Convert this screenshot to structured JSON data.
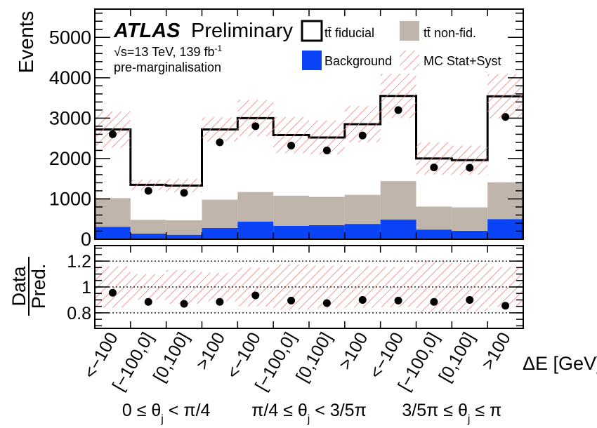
{
  "chart_data": [
    {
      "type": "bar",
      "panel": "main",
      "ylabel": "Events",
      "ylim": [
        0,
        5700
      ],
      "yticks": [
        0,
        1000,
        2000,
        3000,
        4000,
        5000
      ],
      "categories": [
        "<−100",
        "[−100,0]",
        "[0,100]",
        ">100",
        "<−100",
        "[−100,0]",
        "[0,100]",
        ">100",
        "<−100",
        "[−100,0]",
        "[0,100]",
        ">100"
      ],
      "groups": [
        "0 ≤ θj < π/4",
        "π/4 ≤ θj < 3/5π",
        "3/5π ≤ θj ≤ π"
      ],
      "xlabel": "ΔE [GeV]",
      "series": [
        {
          "name": "Background",
          "kind": "stacked-bar",
          "color": "#0b44f6",
          "values": [
            310,
            140,
            110,
            280,
            440,
            330,
            350,
            380,
            490,
            240,
            210,
            500
          ]
        },
        {
          "name": "tt̄ non-fid.",
          "kind": "stacked-bar",
          "color": "#bfb5aa",
          "values": [
            710,
            340,
            360,
            700,
            730,
            750,
            700,
            720,
            950,
            570,
            580,
            910
          ]
        },
        {
          "name": "tt̄ fiducial",
          "kind": "outline-total",
          "color": "#000000",
          "values": [
            2720,
            1350,
            1330,
            2720,
            3000,
            2580,
            2520,
            2850,
            3550,
            2000,
            1960,
            3540
          ]
        },
        {
          "name": "MC Stat+Syst",
          "kind": "uncertainty-band",
          "color": "#f08080",
          "values": [
            450,
            130,
            170,
            300,
            450,
            450,
            420,
            450,
            550,
            400,
            360,
            550
          ]
        },
        {
          "name": "Data",
          "kind": "points",
          "color": "#000000",
          "values": [
            2600,
            1200,
            1150,
            2400,
            2800,
            2320,
            2200,
            2570,
            3200,
            1780,
            1770,
            3030
          ]
        }
      ],
      "legend": [
        "tt̄ fiducial",
        "tt̄ non-fid.",
        "Background",
        "MC Stat+Syst"
      ],
      "legend_position": "top-right",
      "annotations": {
        "experiment": "ATLAS",
        "status": "Preliminary",
        "energy": "√s=13 TeV, 139 fb",
        "lumi_exp": "-1",
        "note": "pre-marginalisation"
      }
    },
    {
      "type": "scatter",
      "panel": "ratio",
      "ylabel": "Data / Pred.",
      "ylabel_num": "Data",
      "ylabel_den": "Pred.",
      "ylim": [
        0.68,
        1.32
      ],
      "yticks": [
        0.8,
        1,
        1.2
      ],
      "ytick_labels": [
        "0.8",
        "1",
        "1.2"
      ],
      "grid": "dotted at 0.8, 1, 1.2",
      "series": [
        {
          "name": "Data/Pred.",
          "color": "#000000",
          "values": [
            0.955,
            0.885,
            0.87,
            0.885,
            0.935,
            0.895,
            0.875,
            0.9,
            0.895,
            0.885,
            0.9,
            0.855
          ]
        },
        {
          "name": "MC Stat+Syst",
          "kind": "uncertainty-band",
          "color": "#f08080",
          "values": [
            0.16,
            0.1,
            0.13,
            0.11,
            0.15,
            0.175,
            0.165,
            0.16,
            0.155,
            0.2,
            0.185,
            0.155
          ]
        }
      ]
    }
  ]
}
